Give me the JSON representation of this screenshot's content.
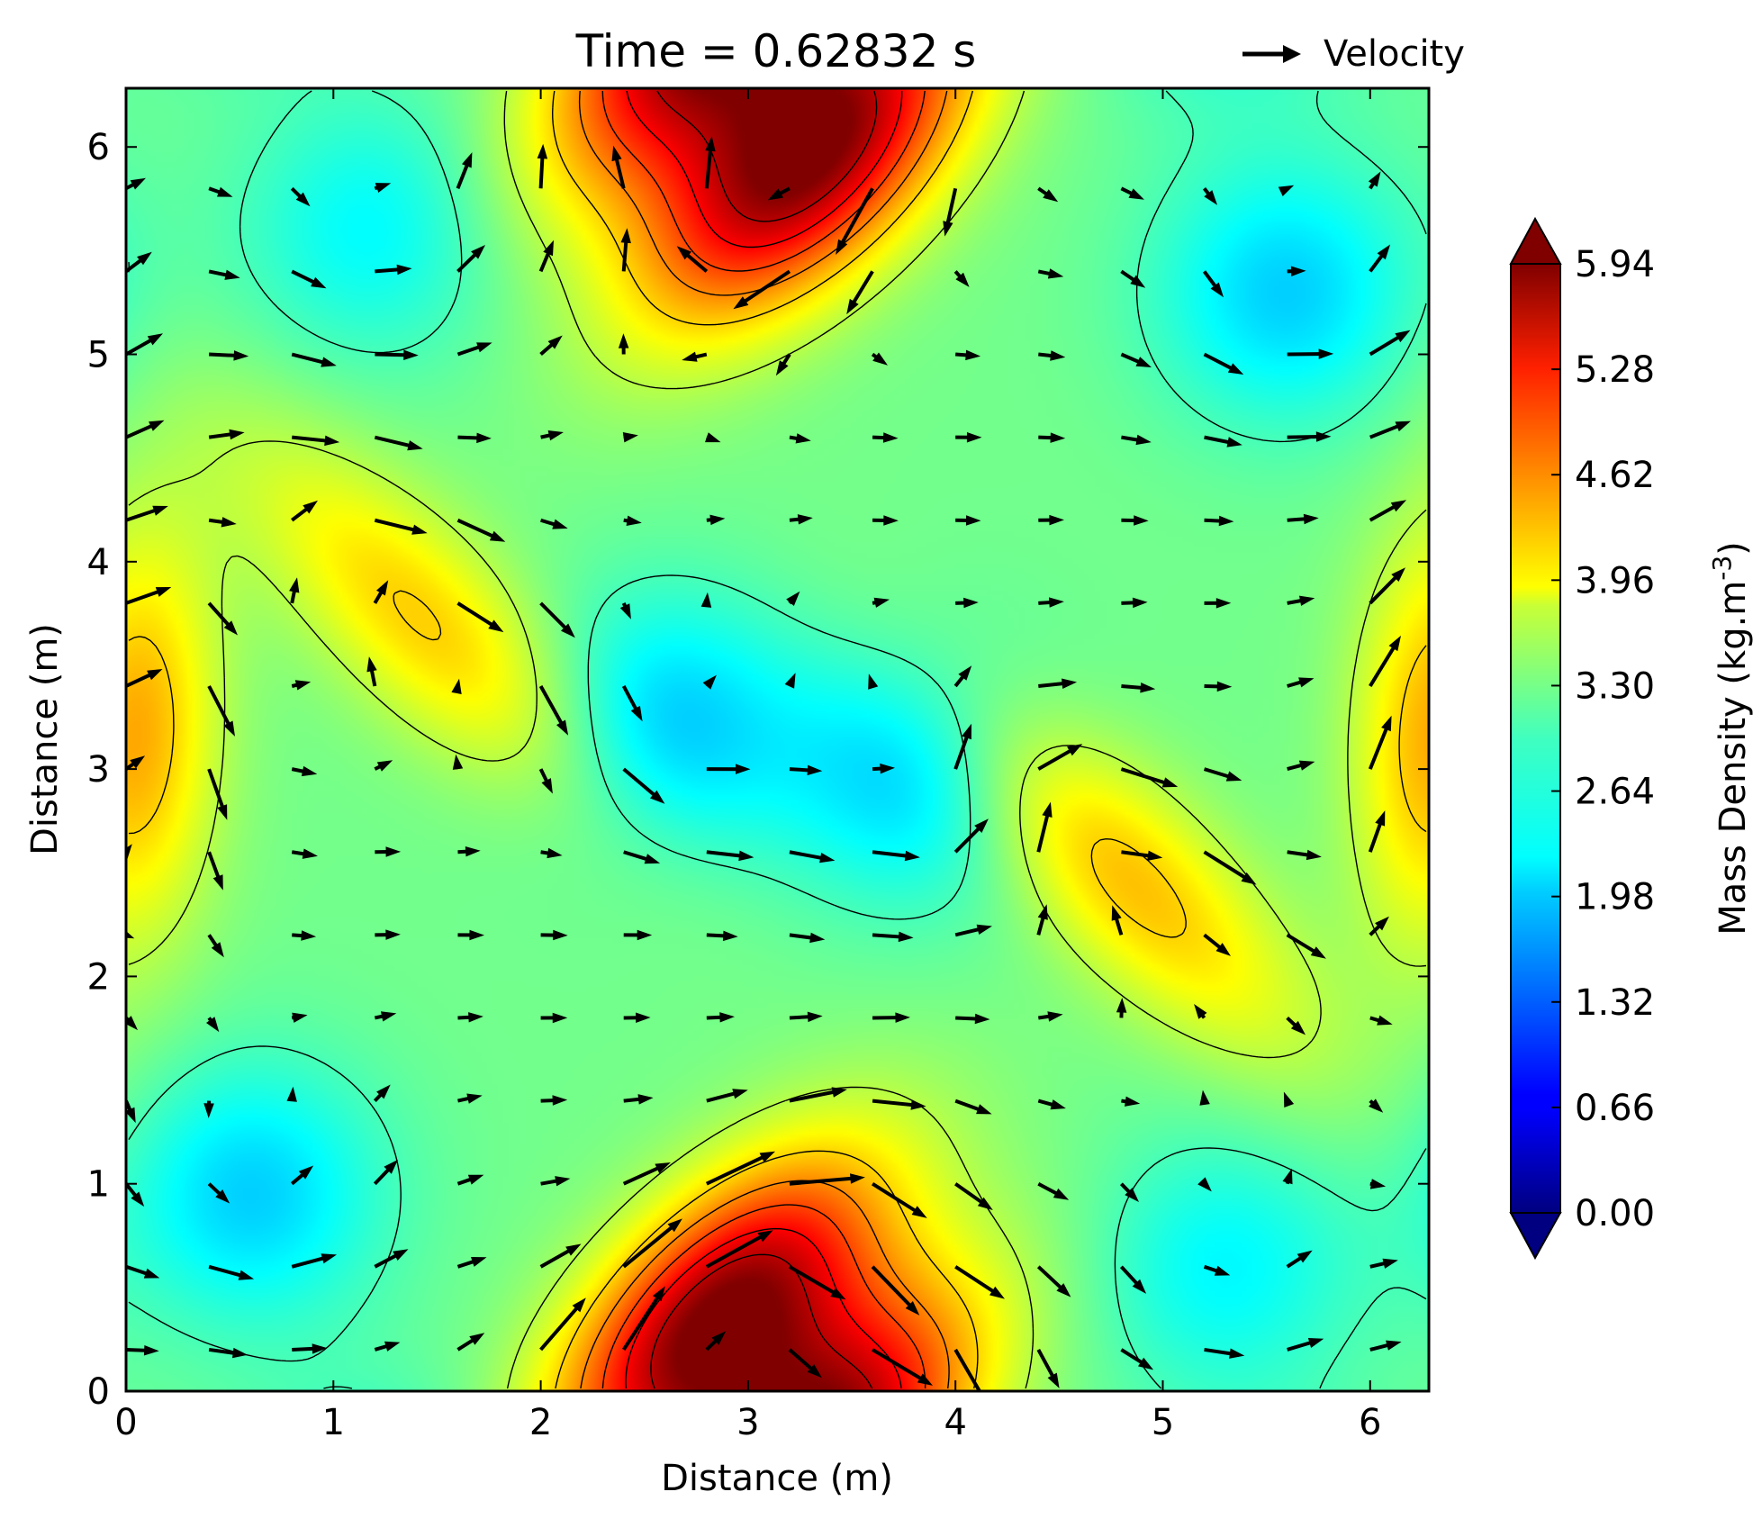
{
  "chart_data": {
    "type": "heatmap",
    "title": "Time = 0.62832 s",
    "xlabel": "Distance (m)",
    "ylabel": "Distance (m)",
    "xlim": [
      0,
      6.2832
    ],
    "ylim": [
      0,
      6.2832
    ],
    "x_ticks": [
      0,
      1,
      2,
      3,
      4,
      5,
      6
    ],
    "y_ticks": [
      0,
      1,
      2,
      3,
      4,
      5,
      6
    ],
    "x_tick_labels": [
      "0",
      "1",
      "2",
      "3",
      "4",
      "5",
      "6"
    ],
    "y_tick_labels": [
      "0",
      "1",
      "2",
      "3",
      "4",
      "5",
      "6"
    ],
    "legend": {
      "label": "Velocity",
      "placement": "top-right",
      "icon": "arrow-icon"
    },
    "colorbar": {
      "label": "Mass Density (kg.m",
      "label_superscript": "-3",
      "label_close": ")",
      "colormap": "jet",
      "range": [
        0,
        5.94
      ],
      "extend": "both",
      "ticks": [
        0.0,
        0.66,
        1.32,
        1.98,
        2.64,
        3.3,
        3.96,
        4.62,
        5.28,
        5.94
      ],
      "tick_labels": [
        "0.00",
        "0.66",
        "1.32",
        "1.98",
        "2.64",
        "3.30",
        "3.96",
        "4.62",
        "5.28",
        "5.94"
      ]
    },
    "field": {
      "description_free": true,
      "peaks": [
        {
          "x": 3.3,
          "y": 5.95,
          "value": 5.94,
          "sx": 0.35,
          "sy": 0.7,
          "angle_deg": -45
        },
        {
          "x": 2.85,
          "y": 0.35,
          "value": 5.94,
          "sx": 0.35,
          "sy": 0.7,
          "angle_deg": -45
        },
        {
          "x": 1.45,
          "y": 3.7,
          "value": 4.0,
          "sx": 0.3,
          "sy": 0.85,
          "angle_deg": 45
        },
        {
          "x": 4.8,
          "y": 2.5,
          "value": 4.1,
          "sx": 0.3,
          "sy": 0.85,
          "angle_deg": 45
        },
        {
          "x": 0.15,
          "y": 3.3,
          "value": 3.7,
          "sx": 0.25,
          "sy": 0.7,
          "angle_deg": 0
        },
        {
          "x": 6.2,
          "y": 3.0,
          "value": 3.6,
          "sx": 0.25,
          "sy": 0.7,
          "angle_deg": 0
        }
      ],
      "troughs": [
        {
          "x": 2.6,
          "y": 3.2,
          "value": 1.9
        },
        {
          "x": 3.8,
          "y": 3.0,
          "value": 1.9
        },
        {
          "x": 0.6,
          "y": 0.95,
          "value": 1.95
        },
        {
          "x": 5.6,
          "y": 5.3,
          "value": 1.95
        },
        {
          "x": 1.2,
          "y": 5.6,
          "value": 2.2
        },
        {
          "x": 5.3,
          "y": 0.6,
          "value": 2.2
        }
      ],
      "background": 2.9
    },
    "contour_levels": [
      2.64,
      3.3,
      3.96,
      4.4,
      4.8,
      5.2,
      5.6
    ],
    "quiver": {
      "grid_x": [
        0,
        0.4,
        0.8,
        1.2,
        1.6,
        2.0,
        2.4,
        2.8,
        3.2,
        3.6,
        4.0,
        4.4,
        4.8,
        5.2,
        5.6,
        6.0
      ],
      "grid_y": [
        0.2,
        0.6,
        1.0,
        1.4,
        1.8,
        2.2,
        2.6,
        3.0,
        3.4,
        3.8,
        4.2,
        4.6,
        5.0,
        5.4,
        5.8
      ],
      "max_speed": 1.0
    }
  }
}
